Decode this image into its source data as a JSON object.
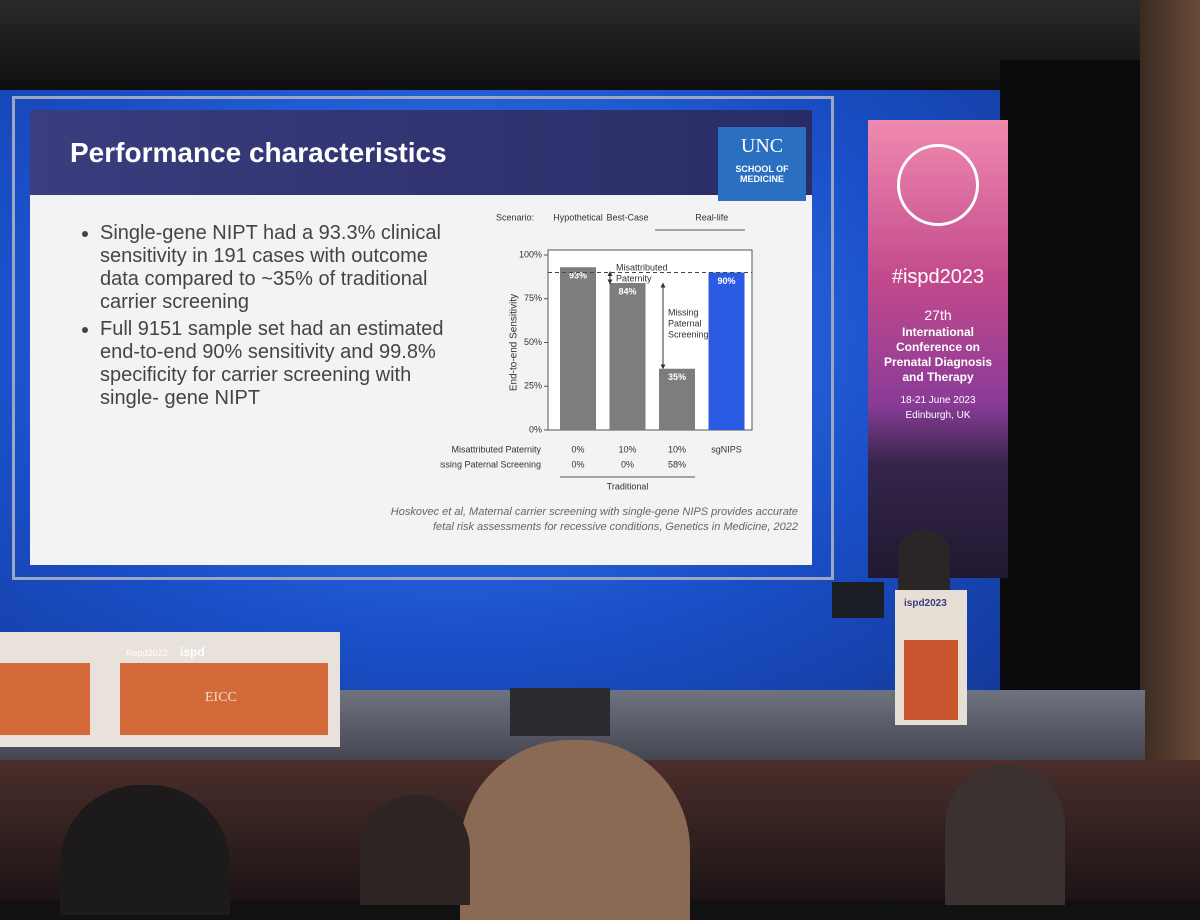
{
  "slide": {
    "title": "Performance characteristics",
    "logo": {
      "name": "UNC",
      "subtitle": "SCHOOL OF MEDICINE"
    },
    "bullets": [
      "Single-gene NIPT had a 93.3% clinical sensitivity in 191 cases with outcome data compared to ~35% of traditional carrier screening",
      "Full 9151 sample set had an estimated end-to-end 90% sensitivity and 99.8% specificity for carrier screening with single- gene NIPT"
    ],
    "citation": "Hoskovec et al, Maternal carrier screening with single-gene NIPS provides accurate fetal risk assessments for recessive conditions, Genetics in Medicine, 2022"
  },
  "chart_data": {
    "type": "bar",
    "y_label": "End-to-end Sensitivity",
    "scenario": {
      "label": "Scenario:",
      "items": [
        "Hypothetical",
        "Best-Case",
        "Real-life"
      ]
    },
    "values": [
      93,
      84,
      35,
      90
    ],
    "value_labels": [
      "93%",
      "84%",
      "35%",
      "90%"
    ],
    "colors": [
      "#7d7d7d",
      "#7d7d7d",
      "#7d7d7d",
      "#2c5be3"
    ],
    "ylim": [
      0,
      100
    ],
    "yticks": [
      {
        "value": 0,
        "label": "0%"
      },
      {
        "value": 25,
        "label": "25%"
      },
      {
        "value": 50,
        "label": "50%"
      },
      {
        "value": 75,
        "label": "75%"
      },
      {
        "value": 100,
        "label": "100%"
      }
    ],
    "reference_line": 90,
    "annotations": [
      [
        "Misattributed",
        "Paternity"
      ],
      [
        "Missing",
        "Paternal",
        "Screening"
      ]
    ],
    "x_table": {
      "rows": [
        {
          "label": "Misattributed Paternity",
          "cells": [
            "0%",
            "10%",
            "10%",
            "sgNIPS"
          ]
        },
        {
          "label": "Missing Paternal Screening",
          "cells": [
            "0%",
            "0%",
            "58%"
          ]
        }
      ],
      "group_label": "Traditional"
    }
  },
  "banner": {
    "hashtag": "#ispd2023",
    "edition": "27th",
    "conference": "International Conference on Prenatal Diagnosis and Therapy",
    "dates": "18-21 June 2023",
    "place": "Edinburgh, UK"
  },
  "podium": {
    "sign": "ispd2023"
  },
  "desk": {
    "tag": "#ispd2023",
    "brand": "ispd",
    "venue": "EICC"
  }
}
